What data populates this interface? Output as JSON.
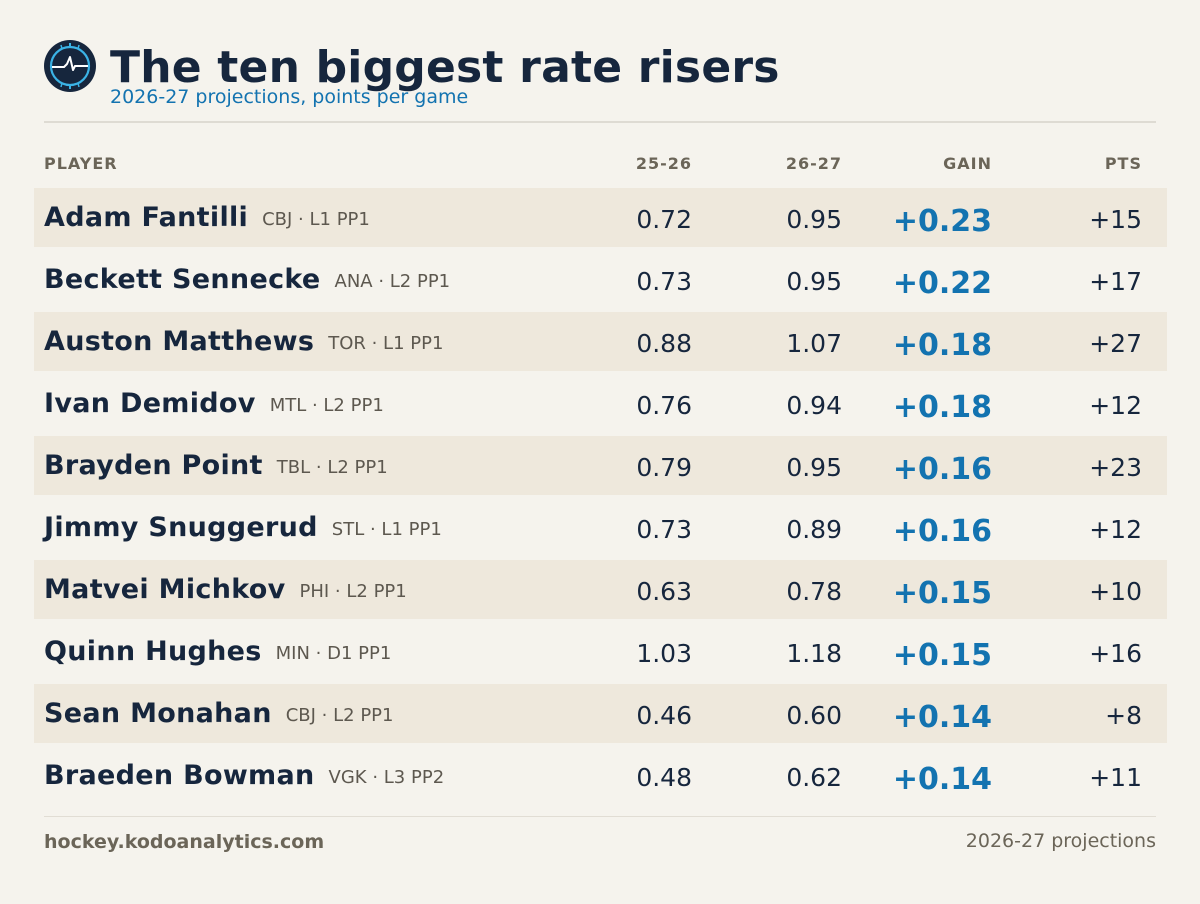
{
  "header": {
    "title": "The ten biggest rate risers",
    "subtitle": "2026-27 projections, points per game",
    "logo_icon": "heartbeat-icon",
    "logo_colors": {
      "ring": "#16263d",
      "accent": "#3bb3e6"
    }
  },
  "columns": {
    "player": "PLAYER",
    "prev": "25-26",
    "curr": "26-27",
    "gain": "GAIN",
    "pts": "PTS"
  },
  "rows": [
    {
      "name": "Adam Fantilli",
      "meta": "CBJ · L1 PP1",
      "prev": "0.72",
      "curr": "0.95",
      "gain": "+0.23",
      "pts": "+15"
    },
    {
      "name": "Beckett Sennecke",
      "meta": "ANA · L2 PP1",
      "prev": "0.73",
      "curr": "0.95",
      "gain": "+0.22",
      "pts": "+17"
    },
    {
      "name": "Auston Matthews",
      "meta": "TOR · L1 PP1",
      "prev": "0.88",
      "curr": "1.07",
      "gain": "+0.18",
      "pts": "+27"
    },
    {
      "name": "Ivan Demidov",
      "meta": "MTL · L2 PP1",
      "prev": "0.76",
      "curr": "0.94",
      "gain": "+0.18",
      "pts": "+12"
    },
    {
      "name": "Brayden Point",
      "meta": "TBL · L2 PP1",
      "prev": "0.79",
      "curr": "0.95",
      "gain": "+0.16",
      "pts": "+23"
    },
    {
      "name": "Jimmy Snuggerud",
      "meta": "STL · L1 PP1",
      "prev": "0.73",
      "curr": "0.89",
      "gain": "+0.16",
      "pts": "+12"
    },
    {
      "name": "Matvei Michkov",
      "meta": "PHI · L2 PP1",
      "prev": "0.63",
      "curr": "0.78",
      "gain": "+0.15",
      "pts": "+10"
    },
    {
      "name": "Quinn Hughes",
      "meta": "MIN · D1 PP1",
      "prev": "1.03",
      "curr": "1.18",
      "gain": "+0.15",
      "pts": "+16"
    },
    {
      "name": "Sean Monahan",
      "meta": "CBJ · L2 PP1",
      "prev": "0.46",
      "curr": "0.60",
      "gain": "+0.14",
      "pts": "+8"
    },
    {
      "name": "Braeden Bowman",
      "meta": "VGK · L3 PP2",
      "prev": "0.48",
      "curr": "0.62",
      "gain": "+0.14",
      "pts": "+11"
    }
  ],
  "footer": {
    "site": "hockey.kodoanalytics.com",
    "note": "2026-27 projections"
  },
  "colors": {
    "background": "#f5f3ed",
    "row_shade": "#eee8dc",
    "text_dark": "#16263d",
    "accent_blue": "#1373b0",
    "muted": "#6b6558"
  }
}
